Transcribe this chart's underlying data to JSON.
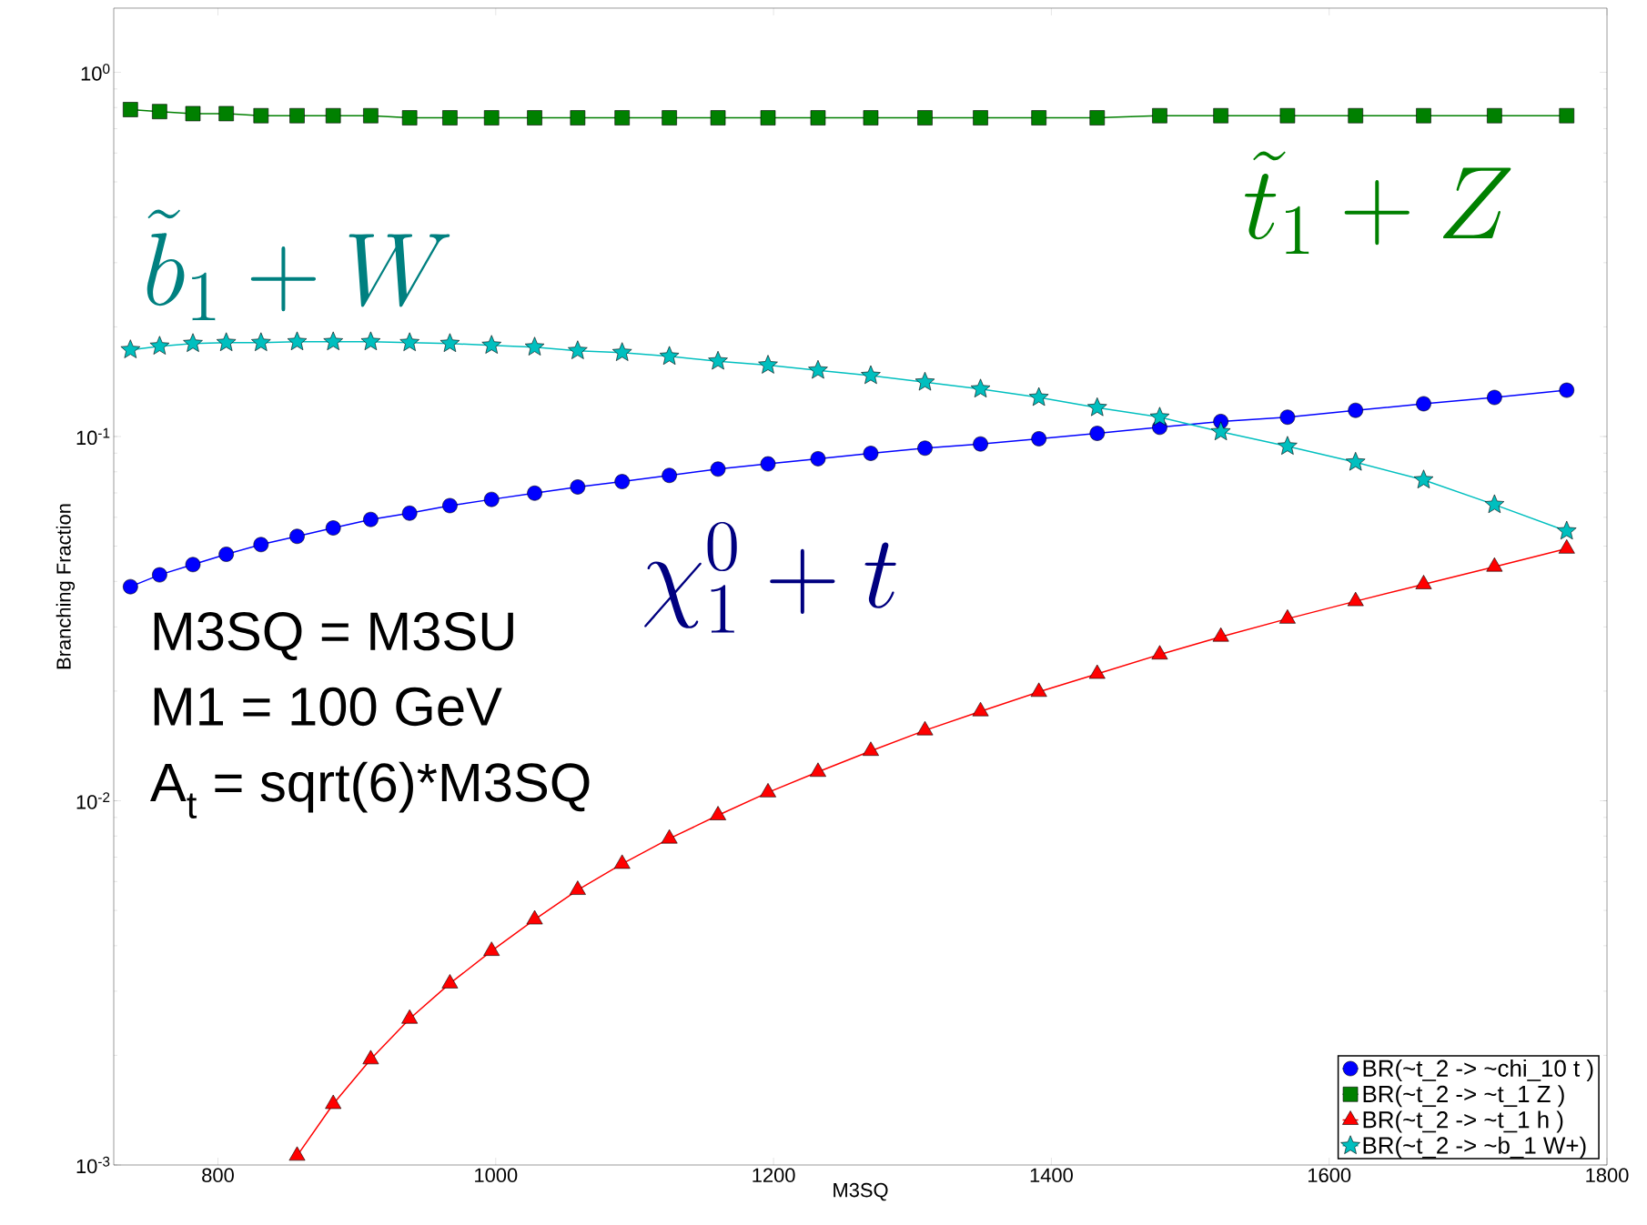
{
  "chart_data": {
    "type": "line",
    "xlabel": "M3SQ",
    "ylabel": "Branching Fraction",
    "log": "y",
    "legend": "bottom right",
    "xlim": [
      725,
      1800
    ],
    "ylim": [
      0.001,
      1.5
    ],
    "xticks": [
      800,
      1000,
      1200,
      1400,
      1600,
      1800
    ],
    "yticks": [
      {
        "value": 0.001,
        "label": "10$^{-3}$"
      },
      {
        "value": 0.01,
        "label": "10$^{-2}$"
      },
      {
        "value": 0.1,
        "label": "10$^{-1}$"
      },
      {
        "value": 1,
        "label": "10$^{0}$"
      }
    ],
    "x": [
      737,
      758,
      782,
      806,
      831,
      857,
      883,
      910,
      938,
      967,
      997,
      1028,
      1059,
      1091,
      1125,
      1160,
      1196,
      1232,
      1270,
      1309,
      1349,
      1391,
      1433,
      1478,
      1522,
      1570,
      1619,
      1668,
      1719,
      1771
    ],
    "series": [
      {
        "name": "BR(~t_2 -> ~chi_10 t )",
        "color": "#0000ff",
        "marker": "circle",
        "values": [
          0.0387,
          0.0417,
          0.0445,
          0.0475,
          0.0505,
          0.0532,
          0.0561,
          0.0592,
          0.0616,
          0.0646,
          0.0672,
          0.0699,
          0.0727,
          0.0752,
          0.0782,
          0.0814,
          0.0841,
          0.0869,
          0.0899,
          0.0929,
          0.0954,
          0.0986,
          0.102,
          0.106,
          0.11,
          0.113,
          0.118,
          0.123,
          0.128,
          0.134
        ]
      },
      {
        "name": "BR(~t_2 -> ~t_1 Z )",
        "color": "#008000",
        "marker": "square",
        "values": [
          0.79,
          0.78,
          0.77,
          0.77,
          0.76,
          0.76,
          0.76,
          0.76,
          0.75,
          0.75,
          0.75,
          0.75,
          0.75,
          0.75,
          0.75,
          0.75,
          0.75,
          0.75,
          0.75,
          0.75,
          0.75,
          0.75,
          0.75,
          0.76,
          0.76,
          0.76,
          0.76,
          0.76,
          0.76,
          0.76
        ]
      },
      {
        "name": "BR(~t_2 -> ~t_1 h )",
        "color": "#ff0000",
        "marker": "triangle",
        "values": [
          null,
          null,
          null,
          null,
          null,
          0.00106,
          0.00147,
          0.00195,
          0.00252,
          0.00315,
          0.00387,
          0.00472,
          0.00569,
          0.00671,
          0.00787,
          0.00912,
          0.01054,
          0.012,
          0.0137,
          0.0156,
          0.0176,
          0.0199,
          0.0223,
          0.0252,
          0.0282,
          0.0316,
          0.0353,
          0.0393,
          0.0439,
          0.0492
        ]
      },
      {
        "name": "BR(~t_2 -> ~b_1 W+)",
        "color": "#00bfbf",
        "marker": "star",
        "values": [
          0.173,
          0.177,
          0.18,
          0.181,
          0.181,
          0.182,
          0.182,
          0.182,
          0.181,
          0.18,
          0.178,
          0.176,
          0.172,
          0.17,
          0.166,
          0.161,
          0.157,
          0.152,
          0.147,
          0.141,
          0.135,
          0.128,
          0.12,
          0.113,
          0.103,
          0.094,
          0.085,
          0.076,
          0.065,
          0.055
        ]
      }
    ],
    "annotations": [
      "\\tilde{b}_1+W",
      "\\tilde{t}_1+Z",
      "\\chi_1^0+t",
      "M3SQ = M3SU",
      "M1 = 100 GeV",
      "A$_{t}$ = sqrt(6)*M3SQ"
    ]
  }
}
